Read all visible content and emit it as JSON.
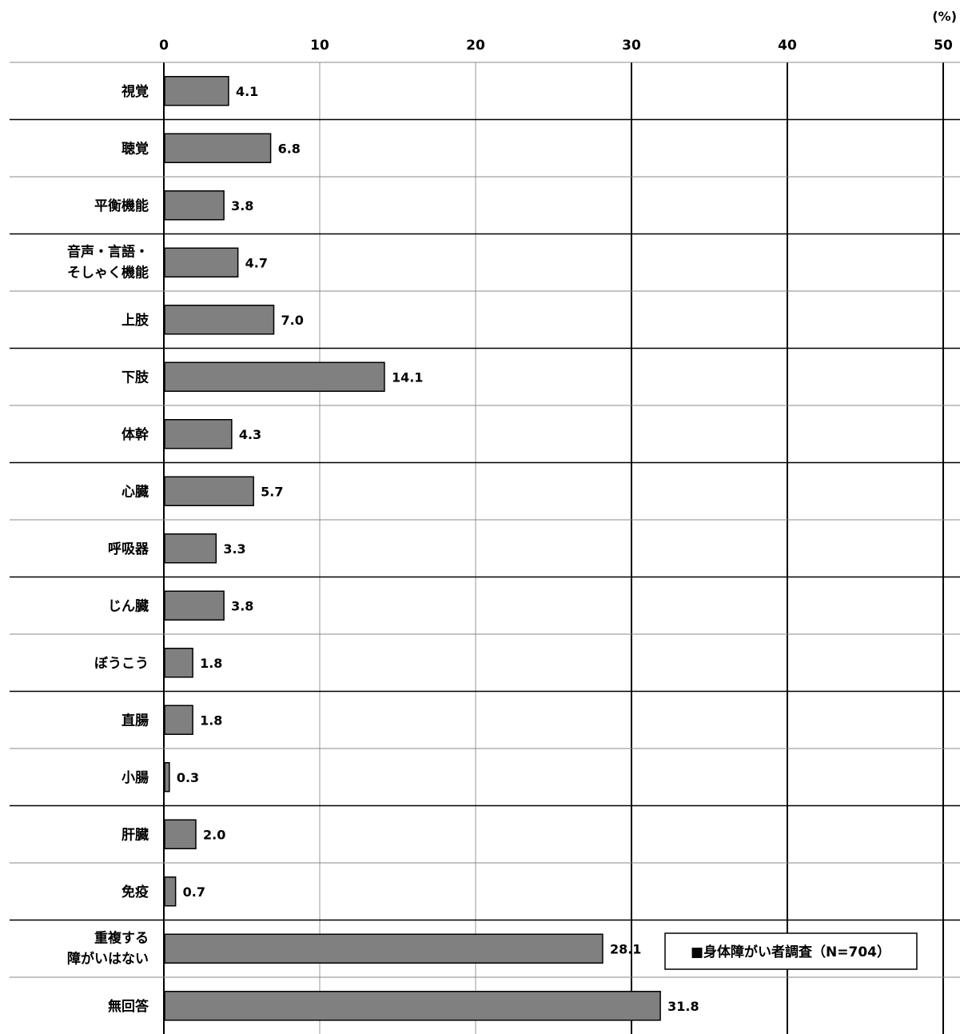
{
  "chart_data": {
    "type": "bar",
    "orientation": "horizontal",
    "unit_label": "(%)",
    "xlim": [
      0,
      50
    ],
    "x_ticks": [
      "0",
      "10",
      "20",
      "30",
      "40",
      "50"
    ],
    "categories": [
      [
        "視覚"
      ],
      [
        "聴覚"
      ],
      [
        "平衡機能"
      ],
      [
        "音声・言語・",
        "そしゃく機能"
      ],
      [
        "上肢"
      ],
      [
        "下肢"
      ],
      [
        "体幹"
      ],
      [
        "心臓"
      ],
      [
        "呼吸器"
      ],
      [
        "じん臓"
      ],
      [
        "ぼうこう"
      ],
      [
        "直腸"
      ],
      [
        "小腸"
      ],
      [
        "肝臓"
      ],
      [
        "免疫"
      ],
      [
        "重複する",
        "障がいはない"
      ],
      [
        "無回答"
      ]
    ],
    "series": [
      {
        "name": "身体障がい者調査（N=704）",
        "values": [
          4.1,
          6.8,
          3.8,
          4.7,
          7.0,
          14.1,
          4.3,
          5.7,
          3.3,
          3.8,
          1.8,
          1.8,
          0.3,
          2.0,
          0.7,
          28.1,
          31.8
        ],
        "value_labels": [
          "4.1",
          "6.8",
          "3.8",
          "4.7",
          "7.0",
          "14.1",
          "4.3",
          "5.7",
          "3.3",
          "3.8",
          "1.8",
          "1.8",
          "0.3",
          "2.0",
          "0.7",
          "28.1",
          "31.8"
        ],
        "color": "#808080"
      }
    ],
    "legend": {
      "label": "■身体障がい者調査（N=704）",
      "position": "bottom-right"
    },
    "grid": true
  }
}
